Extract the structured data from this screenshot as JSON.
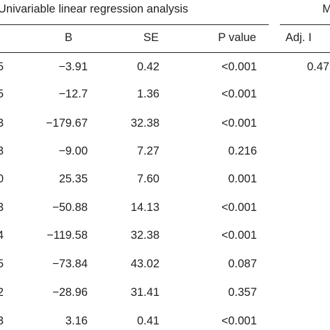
{
  "group_headers": {
    "univariable": "Univariable linear regression analysis",
    "multivariable_partial": "M"
  },
  "columns": {
    "b": "B",
    "se": "SE",
    "p": "P value",
    "adj_partial": "Adj. I"
  },
  "rows": [
    {
      "lead": "5",
      "b": "−3.91",
      "se": "0.42",
      "p": "<0.001",
      "adj": "0.47"
    },
    {
      "lead": "5",
      "b": "−12.7",
      "se": "1.36",
      "p": "<0.001",
      "adj": ""
    },
    {
      "lead": "3",
      "b": "−179.67",
      "se": "32.38",
      "p": "<0.001",
      "adj": ""
    },
    {
      "lead": "3",
      "b": "−9.00",
      "se": "7.27",
      "p": "0.216",
      "adj": ""
    },
    {
      "lead": "0",
      "b": "25.35",
      "se": "7.60",
      "p": "0.001",
      "adj": ""
    },
    {
      "lead": "3",
      "b": "−50.88",
      "se": "14.13",
      "p": "<0.001",
      "adj": ""
    },
    {
      "lead": "4",
      "b": "−119.58",
      "se": "32.38",
      "p": "<0.001",
      "adj": ""
    },
    {
      "lead": "5",
      "b": "−73.84",
      "se": "43.02",
      "p": "0.087",
      "adj": ""
    },
    {
      "lead": "2",
      "b": "−28.96",
      "se": "31.41",
      "p": "0.357",
      "adj": ""
    },
    {
      "lead": "3",
      "b": "3.16",
      "se": "0.41",
      "p": "<0.001",
      "adj": ""
    }
  ]
}
